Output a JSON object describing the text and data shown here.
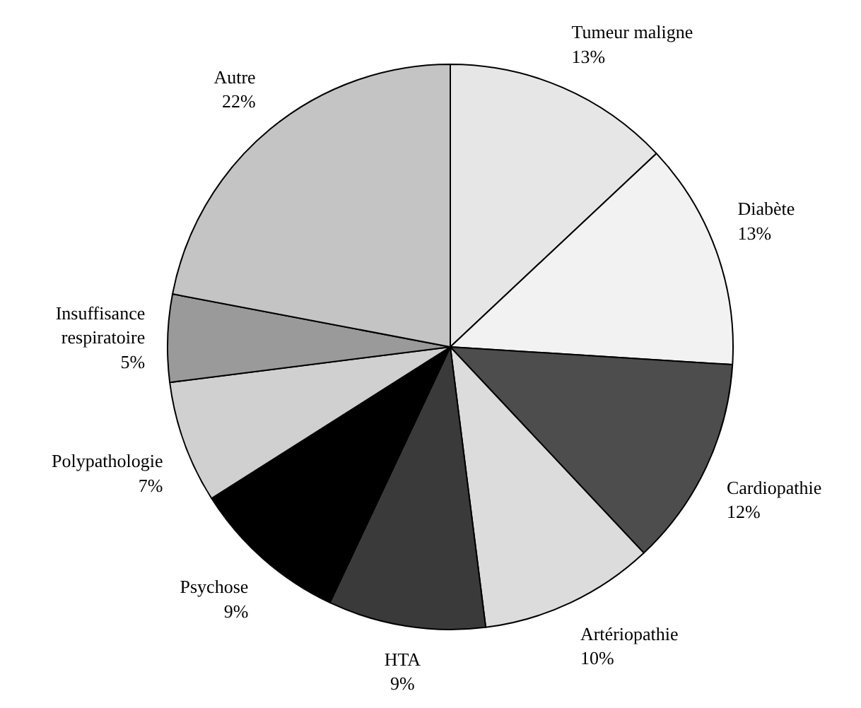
{
  "chart_data": {
    "type": "pie",
    "categories": [
      "Tumeur maligne",
      "Diabète",
      "Cardiopathie",
      "Artériopathie",
      "HTA",
      "Psychose",
      "Polypathologie",
      "Insuffisance respiratoire",
      "Autre"
    ],
    "values": [
      13,
      13,
      12,
      10,
      9,
      9,
      7,
      5,
      22
    ],
    "value_labels": [
      "13%",
      "13%",
      "12%",
      "10%",
      "9%",
      "9%",
      "7%",
      "5%",
      "22%"
    ],
    "colors": [
      "#e6e6e6",
      "#f2f2f2",
      "#4d4d4d",
      "#dcdcdc",
      "#3a3a3a",
      "#000000",
      "#d0d0d0",
      "#9a9a9a",
      "#c4c4c4"
    ]
  }
}
